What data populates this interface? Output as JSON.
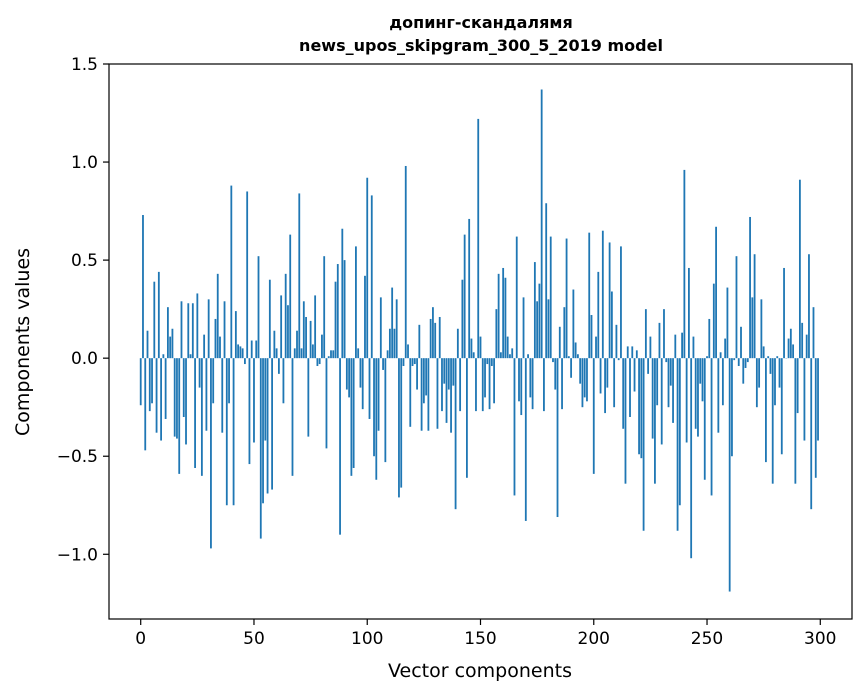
{
  "chart_data": {
    "type": "bar",
    "title": "допинг-скандалямя\nnews_upos_skipgram_300_5_2019 model",
    "xlabel": "Vector components",
    "ylabel": "Components values",
    "xlim": [
      -14,
      314
    ],
    "ylim": [
      -1.33,
      1.5
    ],
    "xticks": [
      0,
      50,
      100,
      150,
      200,
      250,
      300
    ],
    "yticks": [
      -1.0,
      -0.5,
      0.0,
      0.5,
      1.0,
      1.5
    ],
    "ytick_labels": [
      "−1.0",
      "−0.5",
      "0.0",
      "0.5",
      "1.0",
      "1.5"
    ],
    "bar_color": "#1f77b4",
    "grid": false,
    "x": "0..299 (component index)",
    "values": [
      -0.24,
      0.73,
      -0.47,
      0.14,
      -0.27,
      -0.23,
      0.39,
      -0.38,
      0.44,
      -0.42,
      0.02,
      -0.31,
      0.26,
      0.11,
      0.15,
      -0.4,
      -0.41,
      -0.59,
      0.29,
      -0.3,
      -0.44,
      0.28,
      0.02,
      0.28,
      -0.56,
      0.33,
      -0.15,
      -0.6,
      0.12,
      -0.37,
      0.3,
      -0.97,
      -0.23,
      0.2,
      0.43,
      0.11,
      -0.38,
      0.29,
      -0.75,
      -0.23,
      0.88,
      -0.75,
      0.24,
      0.07,
      0.06,
      0.05,
      -0.03,
      0.85,
      -0.54,
      0.09,
      -0.43,
      0.09,
      0.52,
      -0.92,
      -0.74,
      -0.42,
      -0.69,
      0.4,
      -0.67,
      0.14,
      0.05,
      -0.08,
      0.32,
      -0.23,
      0.43,
      0.27,
      0.63,
      -0.6,
      0.05,
      0.14,
      0.84,
      0.05,
      0.29,
      0.21,
      -0.4,
      0.19,
      0.07,
      0.32,
      -0.04,
      -0.03,
      0.12,
      0.52,
      -0.46,
      0.01,
      0.04,
      0.04,
      0.39,
      0.48,
      -0.9,
      0.66,
      0.5,
      -0.16,
      -0.2,
      -0.6,
      -0.56,
      0.57,
      0.05,
      -0.15,
      -0.26,
      0.42,
      0.92,
      -0.31,
      0.83,
      -0.5,
      -0.62,
      -0.37,
      0.31,
      -0.06,
      -0.53,
      0.04,
      0.15,
      0.36,
      0.15,
      0.3,
      -0.71,
      -0.66,
      -0.04,
      0.98,
      0.07,
      -0.35,
      -0.04,
      -0.03,
      -0.16,
      0.17,
      -0.37,
      -0.23,
      -0.19,
      -0.37,
      0.2,
      0.26,
      0.18,
      -0.36,
      0.21,
      -0.27,
      -0.13,
      -0.33,
      -0.16,
      -0.38,
      -0.14,
      -0.77,
      0.15,
      -0.27,
      0.4,
      0.63,
      -0.61,
      0.71,
      0.1,
      0.03,
      -0.27,
      1.22,
      0.11,
      -0.27,
      -0.2,
      -0.03,
      -0.26,
      -0.04,
      -0.23,
      0.25,
      0.43,
      0.03,
      0.46,
      0.41,
      0.11,
      0.02,
      0.05,
      -0.7,
      0.62,
      -0.22,
      -0.29,
      0.31,
      -0.83,
      0.02,
      -0.2,
      -0.26,
      0.49,
      0.29,
      0.38,
      1.37,
      -0.27,
      0.79,
      0.3,
      0.62,
      -0.02,
      -0.16,
      -0.81,
      0.16,
      -0.26,
      0.26,
      0.61,
      0.01,
      -0.1,
      0.35,
      0.08,
      0.02,
      -0.13,
      -0.25,
      -0.2,
      -0.22,
      0.64,
      0.22,
      -0.59,
      0.11,
      0.44,
      -0.18,
      0.65,
      -0.28,
      -0.15,
      0.59,
      0.34,
      -0.25,
      0.17,
      -0.01,
      0.57,
      -0.36,
      -0.64,
      0.06,
      -0.3,
      0.06,
      -0.17,
      0.04,
      -0.49,
      -0.51,
      -0.88,
      0.25,
      -0.08,
      0.11,
      -0.41,
      -0.64,
      -0.24,
      0.18,
      -0.44,
      0.25,
      -0.02,
      -0.25,
      -0.14,
      -0.33,
      0.12,
      -0.88,
      -0.75,
      0.13,
      0.96,
      -0.43,
      0.46,
      -1.02,
      0.11,
      -0.36,
      -0.4,
      -0.13,
      -0.22,
      -0.62,
      0.01,
      0.2,
      -0.7,
      0.38,
      0.67,
      -0.38,
      0.03,
      -0.24,
      0.1,
      0.36,
      -1.19,
      -0.5,
      -0.01,
      0.52,
      -0.04,
      0.16,
      -0.13,
      -0.05,
      -0.02,
      0.72,
      0.31,
      0.53,
      -0.25,
      -0.15,
      0.3,
      0.06,
      -0.53,
      0.01,
      -0.08,
      -0.64,
      -0.24,
      0.01,
      -0.15,
      -0.49,
      0.46,
      0.0,
      0.1,
      0.15,
      0.07,
      -0.64,
      -0.28,
      0.91,
      0.18,
      -0.42,
      0.12,
      0.53,
      -0.77,
      0.26,
      -0.61,
      -0.42
    ]
  }
}
